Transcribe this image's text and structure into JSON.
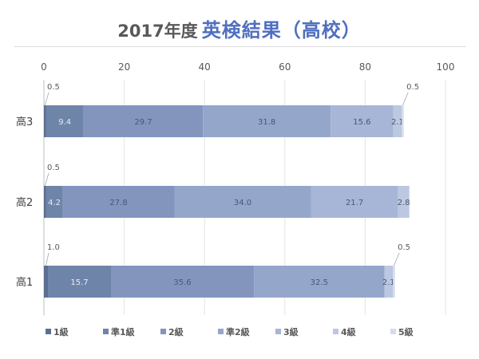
{
  "chart_data": {
    "type": "bar",
    "orientation": "horizontal",
    "stacked": true,
    "title_prefix": "2017年度",
    "title": "英検結果（高校）",
    "categories": [
      "高3",
      "高2",
      "高1"
    ],
    "xlim": [
      0,
      100
    ],
    "x_ticks": [
      "0",
      "20",
      "40",
      "60",
      "80",
      "100"
    ],
    "grid": true,
    "legend_position": "bottom",
    "series": [
      {
        "name": "1級",
        "color": "#5b6f93",
        "values": [
          0.5,
          0.5,
          1.0
        ],
        "labels": [
          "0.5",
          "0.5",
          "1.0"
        ]
      },
      {
        "name": "準1級",
        "color": "#6f84a9",
        "values": [
          9.4,
          4.2,
          15.7
        ],
        "labels": [
          "9.4",
          "4.2",
          "15.7"
        ]
      },
      {
        "name": "2級",
        "color": "#8395bd",
        "values": [
          29.7,
          27.8,
          35.6
        ],
        "labels": [
          "29.7",
          "27.8",
          "35.6"
        ]
      },
      {
        "name": "準2級",
        "color": "#95a6cb",
        "values": [
          31.8,
          34.0,
          32.5
        ],
        "labels": [
          "31.8",
          "34.0",
          "32.5"
        ]
      },
      {
        "name": "3級",
        "color": "#a7b5d6",
        "values": [
          15.6,
          21.7,
          0
        ],
        "labels": [
          "15.6",
          "21.7",
          ""
        ]
      },
      {
        "name": "4級",
        "color": "#bcc8e1",
        "values": [
          2.1,
          2.8,
          2.1
        ],
        "labels": [
          "2.1",
          "2.8",
          "2.1"
        ]
      },
      {
        "name": "5級",
        "color": "#d3dbec",
        "values": [
          0.5,
          0,
          0.5
        ],
        "labels": [
          "0.5",
          "",
          "0.5"
        ]
      }
    ]
  }
}
